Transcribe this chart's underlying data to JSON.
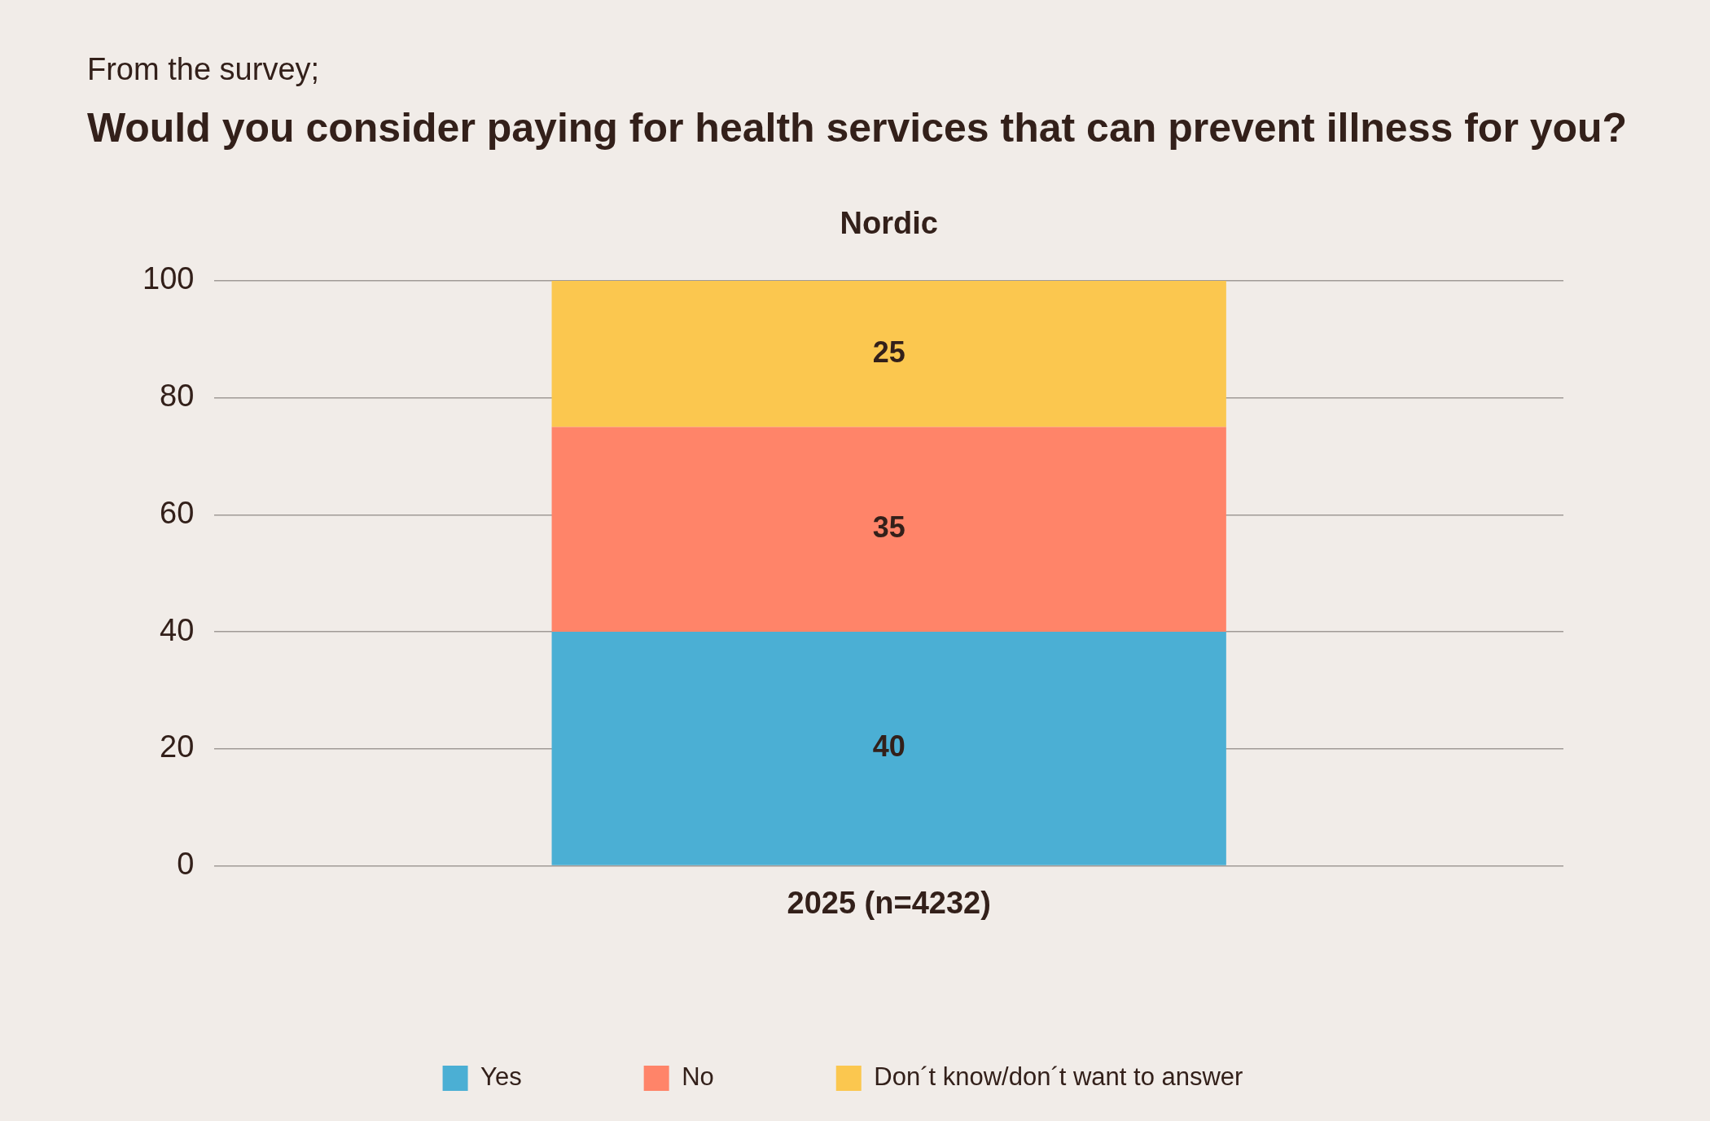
{
  "chart_data": {
    "type": "bar",
    "subtitle": "From the survey;",
    "title": "Would you consider paying for health services that can prevent illness for you?",
    "annotations": [
      "Nordic"
    ],
    "categories": [
      "2025 (n=4232)"
    ],
    "stacked": true,
    "series": [
      {
        "name": "Yes",
        "color": "#4bafd4",
        "values": [
          40
        ]
      },
      {
        "name": "No",
        "color": "#ff8469",
        "values": [
          35
        ]
      },
      {
        "name": "Don´t know/don´t want to answer",
        "color": "#fbc74f",
        "values": [
          25
        ]
      }
    ],
    "ylim": [
      0,
      100
    ],
    "yticks": [
      0,
      20,
      40,
      60,
      80,
      100
    ],
    "grid": "y",
    "legend": "bottom",
    "data_labels": true
  }
}
